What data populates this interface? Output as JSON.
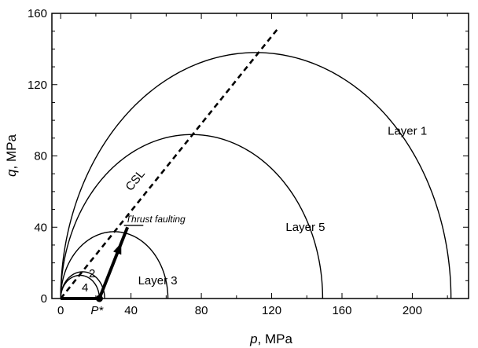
{
  "chart_data": {
    "type": "line",
    "title": "",
    "xlabel": {
      "symbol": "p",
      "unit": ", MPa"
    },
    "ylabel": {
      "symbol": "q",
      "unit": ", MPa"
    },
    "xlim": [
      -5,
      232
    ],
    "ylim": [
      0,
      160
    ],
    "xticks": [
      "0",
      "40",
      "80",
      "120",
      "160",
      "200"
    ],
    "yticks": [
      "0",
      "40",
      "80",
      "120",
      "160"
    ],
    "grid": false,
    "series": [
      {
        "name": "Layer 1",
        "shape": "semi-ellipse",
        "p_min": 0,
        "p_max": 222,
        "q_peak": 138,
        "p_peak": 111
      },
      {
        "name": "Layer 5",
        "shape": "semi-ellipse",
        "p_min": 0,
        "p_max": 149,
        "q_peak": 92,
        "p_peak": 74.5
      },
      {
        "name": "Layer 3",
        "shape": "semi-ellipse",
        "p_min": 0,
        "p_max": 61,
        "q_peak": 37.5,
        "p_peak": 30.5
      },
      {
        "name": "2",
        "shape": "semi-ellipse",
        "p_min": 0,
        "p_max": 25,
        "q_peak": 15,
        "p_peak": 12.5
      },
      {
        "name": "4",
        "shape": "semi-ellipse",
        "p_min": 0,
        "p_max": 22,
        "q_peak": 13,
        "p_peak": 11
      }
    ],
    "csl": {
      "name": "CSL",
      "style": "dashed",
      "points": [
        [
          0,
          0
        ],
        [
          124,
          152
        ]
      ]
    },
    "stress_path": {
      "style": "thick-arrow",
      "points": [
        [
          0,
          0
        ],
        [
          22,
          0
        ],
        [
          38,
          40
        ]
      ]
    },
    "point": {
      "label": "P*",
      "p": 22,
      "q": 0
    },
    "annotation": {
      "text": "Thrust faulting",
      "p": [
        36,
        47
      ],
      "q": 41
    },
    "labels": {
      "layer1": {
        "text": "Layer 1",
        "p": 186,
        "q": 92
      },
      "layer5": {
        "text": "Layer 5",
        "p": 128,
        "q": 38
      },
      "layer3": {
        "text": "Layer 3",
        "p": 44,
        "q": 8
      },
      "csl": {
        "text": "CSL",
        "p": 40,
        "q": 60
      },
      "n2": {
        "text": "2",
        "p": 16,
        "q": 12
      },
      "n4": {
        "text": "4",
        "p": 12,
        "q": 4
      }
    }
  }
}
